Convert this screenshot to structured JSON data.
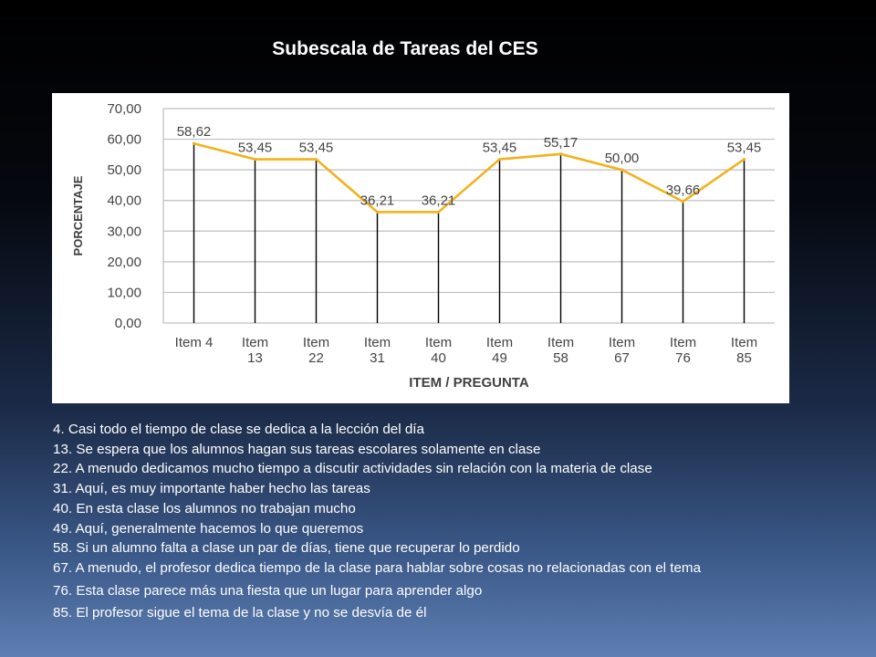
{
  "slide": {
    "title": "Subescala de Tareas del CES"
  },
  "chart_data": {
    "type": "line",
    "categories": [
      [
        "Item 4"
      ],
      [
        "Item",
        "13"
      ],
      [
        "Item",
        "22"
      ],
      [
        "Item",
        "31"
      ],
      [
        "Item",
        "40"
      ],
      [
        "Item",
        "49"
      ],
      [
        "Item",
        "58"
      ],
      [
        "Item",
        "67"
      ],
      [
        "Item",
        "76"
      ],
      [
        "Item",
        "85"
      ]
    ],
    "values": [
      58.62,
      53.45,
      53.45,
      36.21,
      36.21,
      53.45,
      55.17,
      50.0,
      39.66,
      53.45
    ],
    "data_labels": [
      "58,62",
      "53,45",
      "53,45",
      "36,21",
      "36,21",
      "53,45",
      "55,17",
      "50,00",
      "39,66",
      "53,45"
    ],
    "y_ticks": [
      "0,00",
      "10,00",
      "20,00",
      "30,00",
      "40,00",
      "50,00",
      "60,00",
      "70,00"
    ],
    "ylim": [
      0,
      70
    ],
    "xlabel": "ITEM / PREGUNTA",
    "ylabel": "PORCENTAJE",
    "grid": true,
    "drop_lines": true,
    "line_color": "#f2b21c",
    "grid_color": "#bfbfbf"
  },
  "items": [
    "4. Casi todo el tiempo de clase se dedica a la lección del día",
    "13. Se espera que los alumnos hagan sus tareas escolares solamente en clase",
    "22. A menudo dedicamos mucho tiempo a discutir actividades sin relación con la materia de clase",
    "31. Aquí, es muy importante haber hecho las tareas",
    "40. En esta clase los alumnos no trabajan mucho",
    "49. Aquí, generalmente hacemos lo que queremos",
    "58. Si un alumno falta a clase un par de días, tiene que recuperar lo perdido",
    "67. A menudo, el profesor dedica tiempo de la clase para hablar sobre cosas no relacionadas con el tema",
    "76. Esta clase parece más una fiesta que un lugar para aprender algo",
    "85. El profesor sigue el tema de la clase y no se desvía de él"
  ]
}
